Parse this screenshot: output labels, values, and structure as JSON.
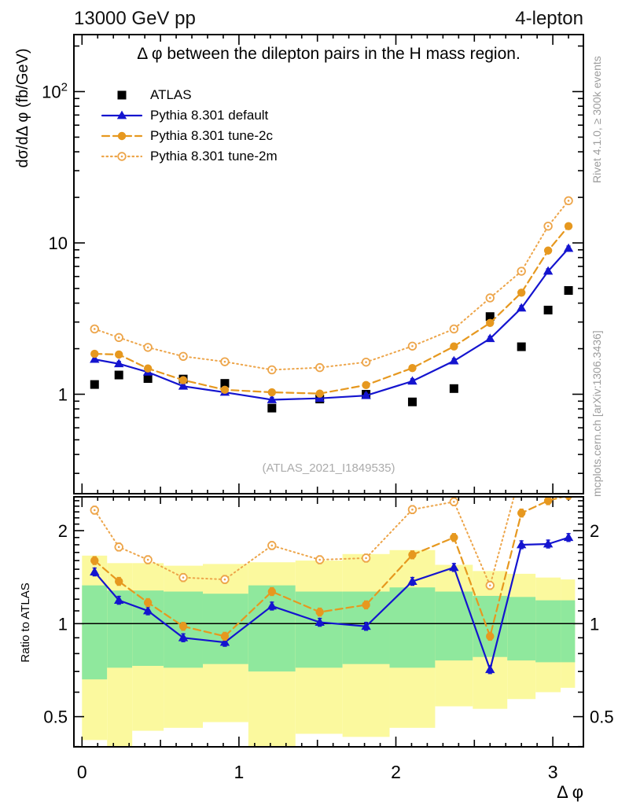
{
  "header": {
    "left": "13000 GeV pp",
    "right": "4-lepton"
  },
  "main_panel": {
    "title": "Δ φ between the dilepton pairs in the H mass region.",
    "ylabel": "dσ/dΔ φ (fb/GeV)",
    "watermark": "(ATLAS_2021_I1849535)",
    "ytick_labels": [
      {
        "v": 100,
        "t": "10^2"
      },
      {
        "v": 10,
        "t": "10"
      },
      {
        "v": 1,
        "t": "1"
      }
    ]
  },
  "ratio_panel": {
    "ylabel": "Ratio to ATLAS",
    "ytick_labels": [
      {
        "v": 2,
        "t": "2"
      },
      {
        "v": 1,
        "t": "1"
      },
      {
        "v": 0.5,
        "t": "0.5"
      }
    ]
  },
  "xaxis": {
    "label": "Δ φ",
    "tick_labels": [
      {
        "v": 0,
        "t": "0"
      },
      {
        "v": 1,
        "t": "1"
      },
      {
        "v": 2,
        "t": "2"
      },
      {
        "v": 3,
        "t": "3"
      }
    ]
  },
  "side_notes": {
    "top_right": "Rivet 4.1.0, ≥ 300k events",
    "bottom_right": "mcplots.cern.ch [arXiv:1306.3436]"
  },
  "legend": {
    "items": [
      {
        "label": "ATLAS"
      },
      {
        "label": "Pythia 8.301 default"
      },
      {
        "label": "Pythia 8.301 tune-2c"
      },
      {
        "label": "Pythia 8.301 tune-2m"
      }
    ]
  },
  "colors": {
    "atlas": "#000000",
    "default": "#1414cf",
    "tune2c": "#e6981f",
    "tune2m": "#eda54a",
    "band_green": "#8fe89d",
    "band_yellow": "#fbf99e",
    "frame": "#000000",
    "gray_text": "#9c9c9c",
    "watermark": "#ababab"
  },
  "chart_data": {
    "type": "line",
    "title": "Δ φ between the dilepton pairs in the H mass region.",
    "xlabel": "Δ φ",
    "x": [
      0.08,
      0.235,
      0.42,
      0.645,
      0.91,
      1.21,
      1.515,
      1.81,
      2.105,
      2.37,
      2.6,
      2.8,
      2.97,
      3.1
    ],
    "bin_edges": [
      0,
      0.16,
      0.32,
      0.52,
      0.77,
      1.06,
      1.36,
      1.66,
      1.96,
      2.25,
      2.49,
      2.71,
      2.89,
      3.05,
      3.1416
    ],
    "top_panel": {
      "ylabel": "dσ/dΔ φ (fb/GeV)",
      "yscale": "log",
      "ylim": [
        0.22,
        238
      ],
      "xlim": [
        -0.05,
        3.2
      ],
      "series": [
        {
          "name": "ATLAS",
          "marker": "square",
          "line": "none",
          "color": "#000000",
          "values": [
            1.16,
            1.34,
            1.27,
            1.26,
            1.18,
            0.81,
            0.93,
            1.0,
            0.89,
            1.09,
            3.26,
            2.06,
            3.6,
            4.85
          ]
        },
        {
          "name": "Pythia 8.301 default",
          "marker": "triangle",
          "line": "solid",
          "color": "#1414cf",
          "values": [
            1.7,
            1.59,
            1.4,
            1.13,
            1.03,
            0.92,
            0.94,
            0.98,
            1.22,
            1.66,
            2.33,
            3.71,
            6.5,
            9.2
          ]
        },
        {
          "name": "Pythia 8.301 tune-2c",
          "marker": "circle",
          "line": "dashed",
          "color": "#e6981f",
          "values": [
            1.85,
            1.83,
            1.48,
            1.24,
            1.07,
            1.03,
            1.01,
            1.15,
            1.49,
            2.07,
            2.96,
            4.69,
            8.9,
            12.9
          ]
        },
        {
          "name": "Pythia 8.301 tune-2m",
          "marker": "open-circle",
          "line": "dotted",
          "color": "#eda54a",
          "values": [
            2.7,
            2.37,
            2.04,
            1.78,
            1.64,
            1.45,
            1.5,
            1.63,
            2.08,
            2.7,
            4.33,
            6.5,
            12.9,
            19.0
          ]
        }
      ]
    },
    "bottom_panel": {
      "ylabel": "Ratio to ATLAS",
      "yscale": "log",
      "ylim": [
        0.4,
        2.57
      ],
      "ref_line": 1.0,
      "series": [
        {
          "name": "Pythia 8.301 default",
          "marker": "triangle",
          "line": "solid",
          "color": "#1414cf",
          "values": [
            1.47,
            1.19,
            1.1,
            0.9,
            0.87,
            1.14,
            1.01,
            0.98,
            1.37,
            1.52,
            0.71,
            1.8,
            1.81,
            1.9
          ]
        },
        {
          "name": "Pythia 8.301 tune-2c",
          "marker": "circle",
          "line": "dashed",
          "color": "#e6981f",
          "values": [
            1.6,
            1.37,
            1.17,
            0.98,
            0.91,
            1.27,
            1.09,
            1.15,
            1.67,
            1.9,
            0.91,
            2.28,
            2.5,
            2.6
          ]
        },
        {
          "name": "Pythia 8.301 tune-2m",
          "marker": "open-circle",
          "line": "dotted",
          "color": "#eda54a",
          "values": [
            2.33,
            1.77,
            1.61,
            1.41,
            1.39,
            1.79,
            1.61,
            1.63,
            2.34,
            2.48,
            1.33,
            3.16,
            3.58,
            3.92
          ]
        }
      ],
      "bands": {
        "yellow_top": [
          1.66,
          1.57,
          1.57,
          1.54,
          1.56,
          1.58,
          1.6,
          1.68,
          1.73,
          1.55,
          1.48,
          1.45,
          1.41,
          1.39
        ],
        "green_top": [
          1.33,
          1.28,
          1.28,
          1.27,
          1.25,
          1.33,
          1.27,
          1.27,
          1.31,
          1.27,
          1.23,
          1.22,
          1.19,
          1.19
        ],
        "green_bottom": [
          0.66,
          0.72,
          0.73,
          0.72,
          0.74,
          0.7,
          0.72,
          0.74,
          0.72,
          0.76,
          0.78,
          0.76,
          0.75,
          0.75
        ],
        "yellow_bottom": [
          0.42,
          0.38,
          0.45,
          0.46,
          0.48,
          0.4,
          0.44,
          0.43,
          0.46,
          0.54,
          0.53,
          0.57,
          0.6,
          0.62
        ]
      }
    }
  }
}
